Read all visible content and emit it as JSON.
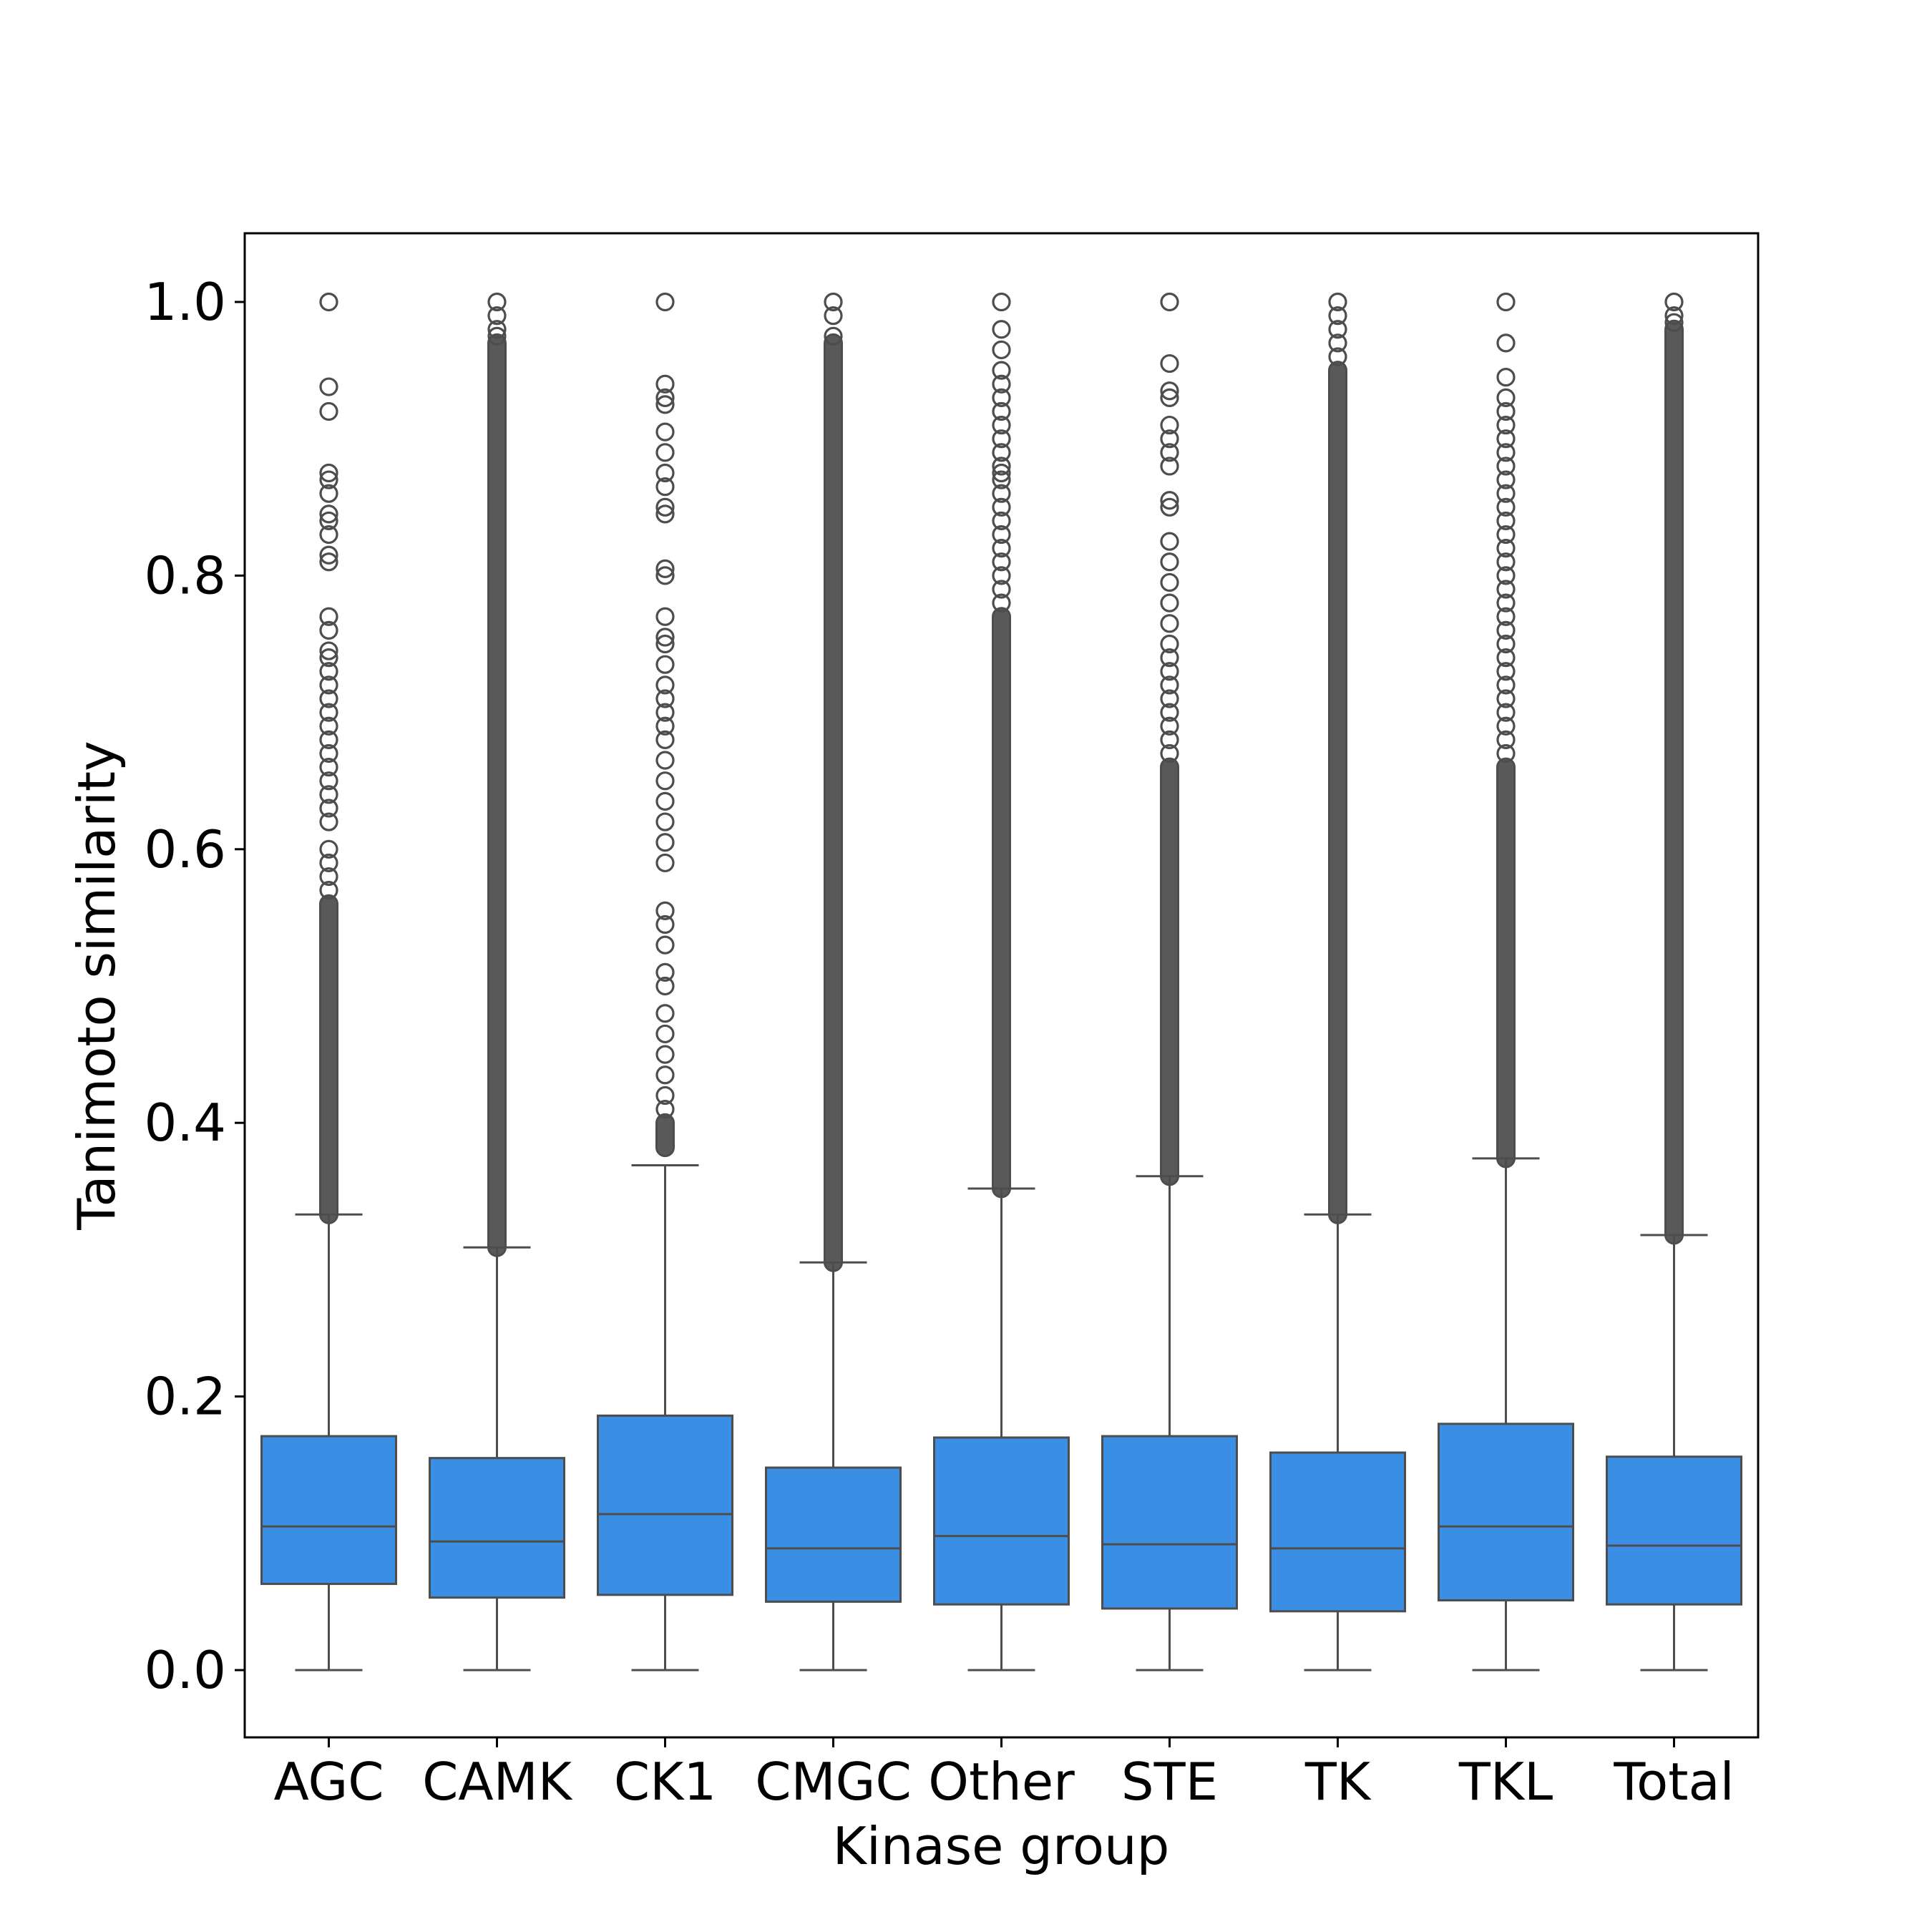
{
  "chart_data": {
    "type": "box",
    "xlabel": "Kinase group",
    "ylabel": "Tanimoto similarity",
    "ylim": [
      -0.05,
      1.05
    ],
    "yticks": [
      "0.0",
      "0.2",
      "0.4",
      "0.6",
      "0.8",
      "1.0"
    ],
    "ytick_values": [
      0.0,
      0.2,
      0.4,
      0.6,
      0.8,
      1.0
    ],
    "grid": false,
    "colors": {
      "box_fill": "#3a8ee3",
      "box_edge": "#4d4d4d",
      "axis": "#000000"
    },
    "categories": [
      "AGC",
      "CAMK",
      "CK1",
      "CMGC",
      "Other",
      "STE",
      "TK",
      "TKL",
      "Total"
    ],
    "boxes": [
      {
        "name": "AGC",
        "whisker_low": 0.0,
        "q1": 0.063,
        "median": 0.105,
        "q3": 0.171,
        "whisker_high": 0.333
      },
      {
        "name": "CAMK",
        "whisker_low": 0.0,
        "q1": 0.053,
        "median": 0.094,
        "q3": 0.155,
        "whisker_high": 0.309
      },
      {
        "name": "CK1",
        "whisker_low": 0.0,
        "q1": 0.055,
        "median": 0.114,
        "q3": 0.186,
        "whisker_high": 0.369
      },
      {
        "name": "CMGC",
        "whisker_low": 0.0,
        "q1": 0.05,
        "median": 0.089,
        "q3": 0.148,
        "whisker_high": 0.298
      },
      {
        "name": "Other",
        "whisker_low": 0.0,
        "q1": 0.048,
        "median": 0.098,
        "q3": 0.17,
        "whisker_high": 0.352
      },
      {
        "name": "STE",
        "whisker_low": 0.0,
        "q1": 0.045,
        "median": 0.092,
        "q3": 0.171,
        "whisker_high": 0.361
      },
      {
        "name": "TK",
        "whisker_low": 0.0,
        "q1": 0.043,
        "median": 0.089,
        "q3": 0.159,
        "whisker_high": 0.333
      },
      {
        "name": "TKL",
        "whisker_low": 0.0,
        "q1": 0.051,
        "median": 0.105,
        "q3": 0.18,
        "whisker_high": 0.374
      },
      {
        "name": "Total",
        "whisker_low": 0.0,
        "q1": 0.048,
        "median": 0.091,
        "q3": 0.156,
        "whisker_high": 0.318
      }
    ],
    "outliers": [
      {
        "name": "AGC",
        "dense_range": [
          0.333,
          0.56
        ],
        "values": [
          0.57,
          0.58,
          0.59,
          0.6,
          0.62,
          0.63,
          0.64,
          0.65,
          0.66,
          0.67,
          0.68,
          0.69,
          0.7,
          0.71,
          0.72,
          0.73,
          0.74,
          0.745,
          0.76,
          0.77,
          0.81,
          0.815,
          0.83,
          0.84,
          0.845,
          0.86,
          0.87,
          0.875,
          0.92,
          0.938,
          1.0
        ]
      },
      {
        "name": "CAMK",
        "dense_range": [
          0.309,
          0.97
        ],
        "values": [
          0.975,
          0.98,
          0.99,
          1.0
        ]
      },
      {
        "name": "CK1",
        "dense_range": [
          0.382,
          0.4
        ],
        "values": [
          0.41,
          0.42,
          0.435,
          0.45,
          0.465,
          0.48,
          0.5,
          0.51,
          0.53,
          0.545,
          0.555,
          0.59,
          0.605,
          0.62,
          0.635,
          0.65,
          0.665,
          0.68,
          0.69,
          0.7,
          0.71,
          0.72,
          0.735,
          0.75,
          0.755,
          0.77,
          0.8,
          0.805,
          0.845,
          0.85,
          0.865,
          0.875,
          0.89,
          0.905,
          0.925,
          0.93,
          0.94,
          1.0
        ]
      },
      {
        "name": "CMGC",
        "dense_range": [
          0.298,
          0.97
        ],
        "values": [
          0.975,
          0.99,
          1.0
        ]
      },
      {
        "name": "Other",
        "dense_range": [
          0.352,
          0.77
        ],
        "values": [
          0.78,
          0.79,
          0.8,
          0.81,
          0.82,
          0.83,
          0.84,
          0.85,
          0.86,
          0.87,
          0.875,
          0.88,
          0.89,
          0.9,
          0.91,
          0.92,
          0.93,
          0.94,
          0.95,
          0.965,
          0.98,
          1.0
        ]
      },
      {
        "name": "STE",
        "dense_range": [
          0.361,
          0.66
        ],
        "values": [
          0.67,
          0.68,
          0.69,
          0.7,
          0.71,
          0.72,
          0.73,
          0.74,
          0.75,
          0.765,
          0.78,
          0.795,
          0.81,
          0.825,
          0.85,
          0.855,
          0.88,
          0.89,
          0.9,
          0.91,
          0.93,
          0.935,
          0.955,
          1.0
        ]
      },
      {
        "name": "TK",
        "dense_range": [
          0.333,
          0.95
        ],
        "values": [
          0.96,
          0.97,
          0.98,
          0.99,
          1.0
        ]
      },
      {
        "name": "TKL",
        "dense_range": [
          0.374,
          0.66
        ],
        "values": [
          0.67,
          0.68,
          0.69,
          0.7,
          0.71,
          0.72,
          0.73,
          0.74,
          0.75,
          0.76,
          0.77,
          0.78,
          0.79,
          0.8,
          0.81,
          0.82,
          0.83,
          0.84,
          0.85,
          0.86,
          0.87,
          0.88,
          0.89,
          0.9,
          0.91,
          0.92,
          0.93,
          0.945,
          0.97,
          1.0
        ]
      },
      {
        "name": "Total",
        "dense_range": [
          0.318,
          0.98
        ],
        "values": [
          0.985,
          0.99,
          1.0
        ]
      }
    ]
  }
}
